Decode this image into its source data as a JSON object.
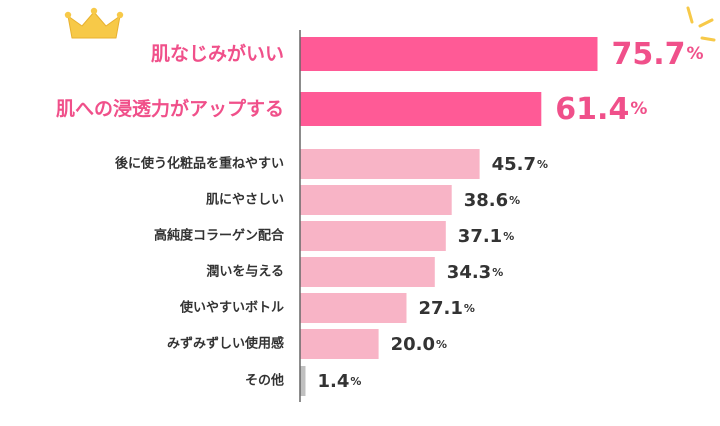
{
  "chart_data": {
    "type": "bar",
    "orientation": "horizontal",
    "categories": [
      "肌なじみがいい",
      "肌への浸透力がアップする",
      "後に使う化粧品を重ねやすい",
      "肌にやさしい",
      "高純度コラーゲン配合",
      "潤いを与える",
      "使いやすいボトル",
      "みずみずしい使用感",
      "その他"
    ],
    "values": [
      75.7,
      61.4,
      45.7,
      38.6,
      37.1,
      34.3,
      27.1,
      20.0,
      1.4
    ],
    "value_labels": [
      "75.7",
      "61.4",
      "45.7",
      "38.6",
      "37.1",
      "34.3",
      "27.1",
      "20.0",
      "1.4"
    ],
    "unit": "%",
    "title": "",
    "xlabel": "",
    "ylabel": "",
    "xlim": [
      0,
      100
    ],
    "grid": false,
    "legend": "none"
  },
  "colors": {
    "top_bar": "#ff5a96",
    "top_label": "#f0508a",
    "bar": "#f8b4c6",
    "other_bar": "#c0c0c0",
    "label": "#333333",
    "axis": "#666666",
    "crown": "#f7c948",
    "sparkle": "#f7c948"
  },
  "icons": {
    "crown": "crown-icon",
    "sparkle": "sparkle-icon"
  }
}
